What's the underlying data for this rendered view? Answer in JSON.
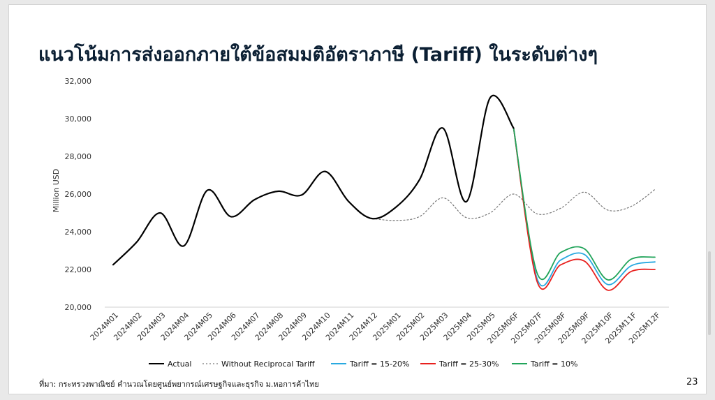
{
  "title": "แนวโน้มการส่งออกภายใต้ข้อสมมติอัตราภาษี (Tariff) ในระดับต่างๆ",
  "source": "ที่มา: กระทรวงพาณิชย์ คำนวณโดยศูนย์พยากรณ์เศรษฐกิจและธุรกิจ ม.หอการค้าไทย",
  "page_number": "23",
  "chart_data": {
    "type": "line",
    "title": "",
    "xlabel": "",
    "ylabel": "Million USD",
    "ylim": [
      20000,
      32000
    ],
    "yticks": [
      20000,
      22000,
      24000,
      26000,
      28000,
      30000,
      32000
    ],
    "ytick_labels": [
      "20,000",
      "22,000",
      "24,000",
      "26,000",
      "28,000",
      "30,000",
      "32,000"
    ],
    "grid": false,
    "legend_position": "bottom",
    "categories": [
      "2024M01",
      "2024M02",
      "2024M03",
      "2024M04",
      "2024M05",
      "2024M06",
      "2024M07",
      "2024M08",
      "2024M09",
      "2024M10",
      "2024M11",
      "2024M12",
      "2025M01",
      "2025M02",
      "2025M03",
      "2025M04",
      "2025M05",
      "2025M06F",
      "2025M07F",
      "2025M08F",
      "2025M09F",
      "2025M10F",
      "2025M11F",
      "2025M12F"
    ],
    "series": [
      {
        "name": "Actual",
        "color": "#000000",
        "style": "solid",
        "values": [
          22250,
          23450,
          25000,
          23250,
          26200,
          24800,
          25700,
          26150,
          25950,
          27200,
          25600,
          24700,
          25300,
          26750,
          29500,
          25600,
          31100,
          29500,
          null,
          null,
          null,
          null,
          null,
          null
        ]
      },
      {
        "name": "Without Reciprocal Tariff",
        "color": "#777777",
        "style": "dotted",
        "values": [
          null,
          null,
          null,
          null,
          null,
          null,
          null,
          null,
          null,
          null,
          null,
          24700,
          24600,
          24800,
          25800,
          24750,
          25000,
          26000,
          24950,
          25250,
          26100,
          25150,
          25350,
          26250
        ]
      },
      {
        "name": "Tariff = 15-20%",
        "color": "#29a9e0",
        "style": "solid",
        "values": [
          null,
          null,
          null,
          null,
          null,
          null,
          null,
          null,
          null,
          null,
          null,
          null,
          null,
          null,
          null,
          null,
          null,
          29500,
          21500,
          22500,
          22800,
          21200,
          22200,
          22400
        ]
      },
      {
        "name": "Tariff = 25-30%",
        "color": "#e8201e",
        "style": "solid",
        "values": [
          null,
          null,
          null,
          null,
          null,
          null,
          null,
          null,
          null,
          null,
          null,
          null,
          null,
          null,
          null,
          null,
          null,
          29500,
          21350,
          22250,
          22450,
          20900,
          21900,
          22000
        ]
      },
      {
        "name": "Tariff = 10%",
        "color": "#21a45a",
        "style": "solid",
        "values": [
          null,
          null,
          null,
          null,
          null,
          null,
          null,
          null,
          null,
          null,
          null,
          null,
          null,
          null,
          null,
          null,
          null,
          29500,
          21800,
          22900,
          23100,
          21450,
          22550,
          22650
        ]
      }
    ]
  }
}
